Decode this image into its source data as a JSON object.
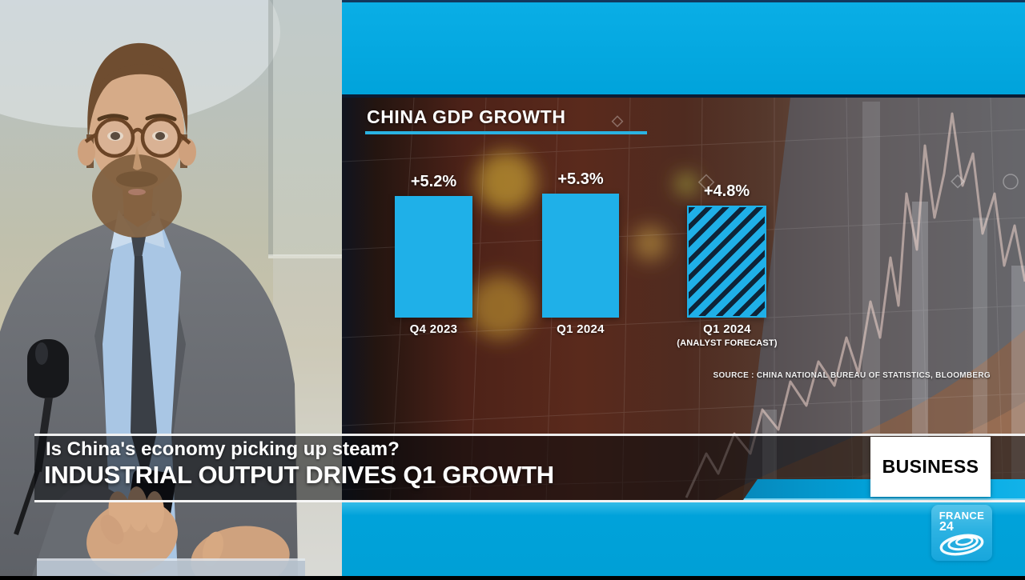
{
  "channel": {
    "name_line1": "FRANCE",
    "name_line2": "24"
  },
  "program_badge": "BUSINESS",
  "lower_third": {
    "kicker": "Is China's economy picking up steam?",
    "headline": "INDUSTRIAL OUTPUT DRIVES Q1 GROWTH"
  },
  "chart_data": {
    "type": "bar",
    "title": "CHINA GDP GROWTH",
    "categories": [
      "Q4 2023",
      "Q1 2024",
      "Q1 2024"
    ],
    "category_notes": [
      "",
      "",
      "(ANALYST FORECAST)"
    ],
    "values": [
      5.2,
      5.3,
      4.8
    ],
    "value_labels": [
      "+5.2%",
      "+5.3%",
      "+4.8%"
    ],
    "bar_styles": [
      "solid",
      "solid",
      "hatched"
    ],
    "unit": "percent year-on-year",
    "ylim": [
      0,
      6
    ],
    "bar_color": "#1fb0e8",
    "source": "SOURCE : CHINA NATIONAL BUREAU OF STATISTICS, BLOOMBERG"
  },
  "colors": {
    "brand_cyan": "#00a6e0",
    "bar_cyan": "#1fb0e8",
    "underline_cyan": "#2ab3e2",
    "badge_bg": "#ffffff",
    "badge_text": "#000000"
  }
}
